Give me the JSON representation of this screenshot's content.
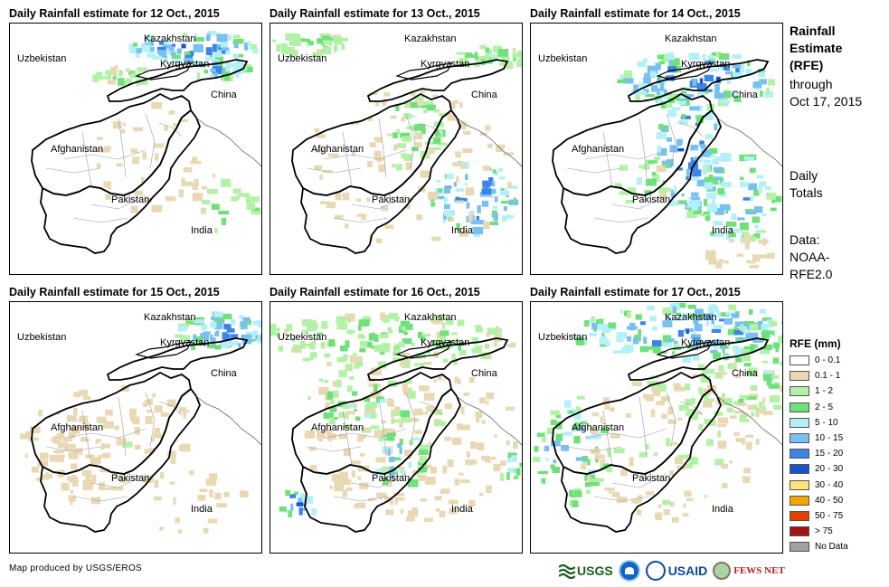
{
  "panels": [
    {
      "title": "Daily Rainfall estimate for 12 Oct., 2015",
      "variant": 0
    },
    {
      "title": "Daily Rainfall estimate for 13 Oct., 2015",
      "variant": 1
    },
    {
      "title": "Daily Rainfall estimate for 14 Oct., 2015",
      "variant": 2
    },
    {
      "title": "Daily Rainfall estimate for 15 Oct., 2015",
      "variant": 3
    },
    {
      "title": "Daily Rainfall estimate for 16 Oct., 2015",
      "variant": 4
    },
    {
      "title": "Daily Rainfall estimate for 17 Oct., 2015",
      "variant": 5
    }
  ],
  "country_labels": {
    "kazakhstan": "Kazakhstan",
    "uzbekistan": "Uzbekistan",
    "kyrgyzstan": "Kyrgyzstan",
    "china": "China",
    "afghanistan": "Afghanistan",
    "pakistan": "Pakistan",
    "india": "India"
  },
  "side": {
    "title_lines": [
      "Rainfall",
      "Estimate",
      "(RFE)"
    ],
    "through": "through",
    "date": "Oct 17, 2015",
    "daily_lines": [
      "Daily",
      "Totals"
    ],
    "data_lines": [
      "Data:",
      "NOAA-",
      "RFE2.0"
    ]
  },
  "legend": {
    "title": "RFE (mm)",
    "items": [
      {
        "label": "0 - 0.1",
        "color": "#ffffff"
      },
      {
        "label": "0.1 - 1",
        "color": "#e8d8b4"
      },
      {
        "label": "1 - 2",
        "color": "#b2f2a6"
      },
      {
        "label": "2 - 5",
        "color": "#6fe07a"
      },
      {
        "label": "5 - 10",
        "color": "#b4f0f8"
      },
      {
        "label": "10 - 15",
        "color": "#78bff2"
      },
      {
        "label": "15 - 20",
        "color": "#3c84e6"
      },
      {
        "label": "20 - 30",
        "color": "#1c50c8"
      },
      {
        "label": "30 - 40",
        "color": "#ffe07a"
      },
      {
        "label": "40 - 50",
        "color": "#f5a300"
      },
      {
        "label": "50 - 75",
        "color": "#e83c00"
      },
      {
        "label": "> 75",
        "color": "#a01414"
      },
      {
        "label": "No Data",
        "color": "#a0a0a0"
      }
    ]
  },
  "footer": {
    "credit": "Map produced by USGS/EROS",
    "logos": {
      "usgs": "USGS",
      "usaid": "USAID",
      "fews": "FEWS NET"
    }
  }
}
